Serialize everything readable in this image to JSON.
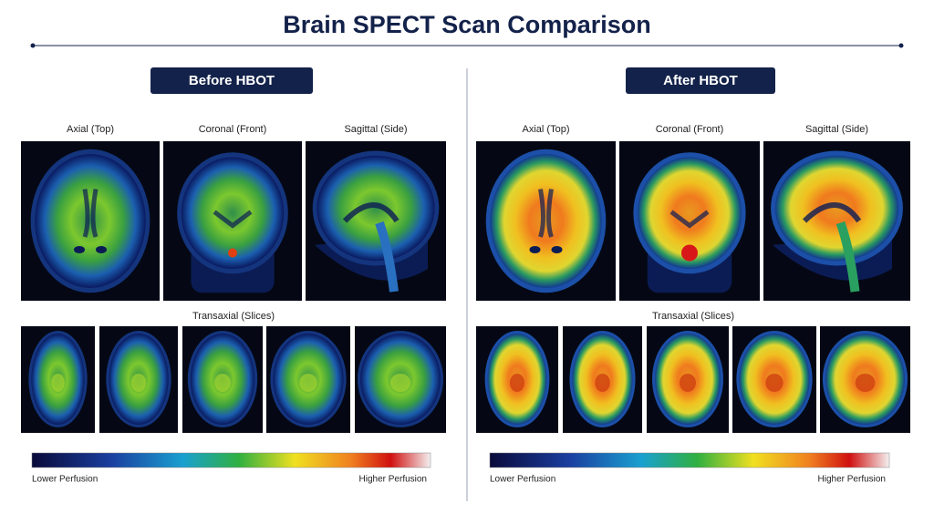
{
  "title": "Brain SPECT Scan Comparison",
  "panels": [
    {
      "heading": "Before HBOT",
      "views": [
        "Axial (Top)",
        "Coronal (Front)",
        "Sagittal (Side)"
      ],
      "slices_label": "Transaxial (Slices)",
      "scale": {
        "low": "Lower Perfusion",
        "high": "Higher Perfusion"
      }
    },
    {
      "heading": "After HBOT",
      "views": [
        "Axial (Top)",
        "Coronal (Front)",
        "Sagittal (Side)"
      ],
      "slices_label": "Transaxial (Slices)",
      "scale": {
        "low": "Lower Perfusion",
        "high": "Higher Perfusion"
      }
    }
  ]
}
